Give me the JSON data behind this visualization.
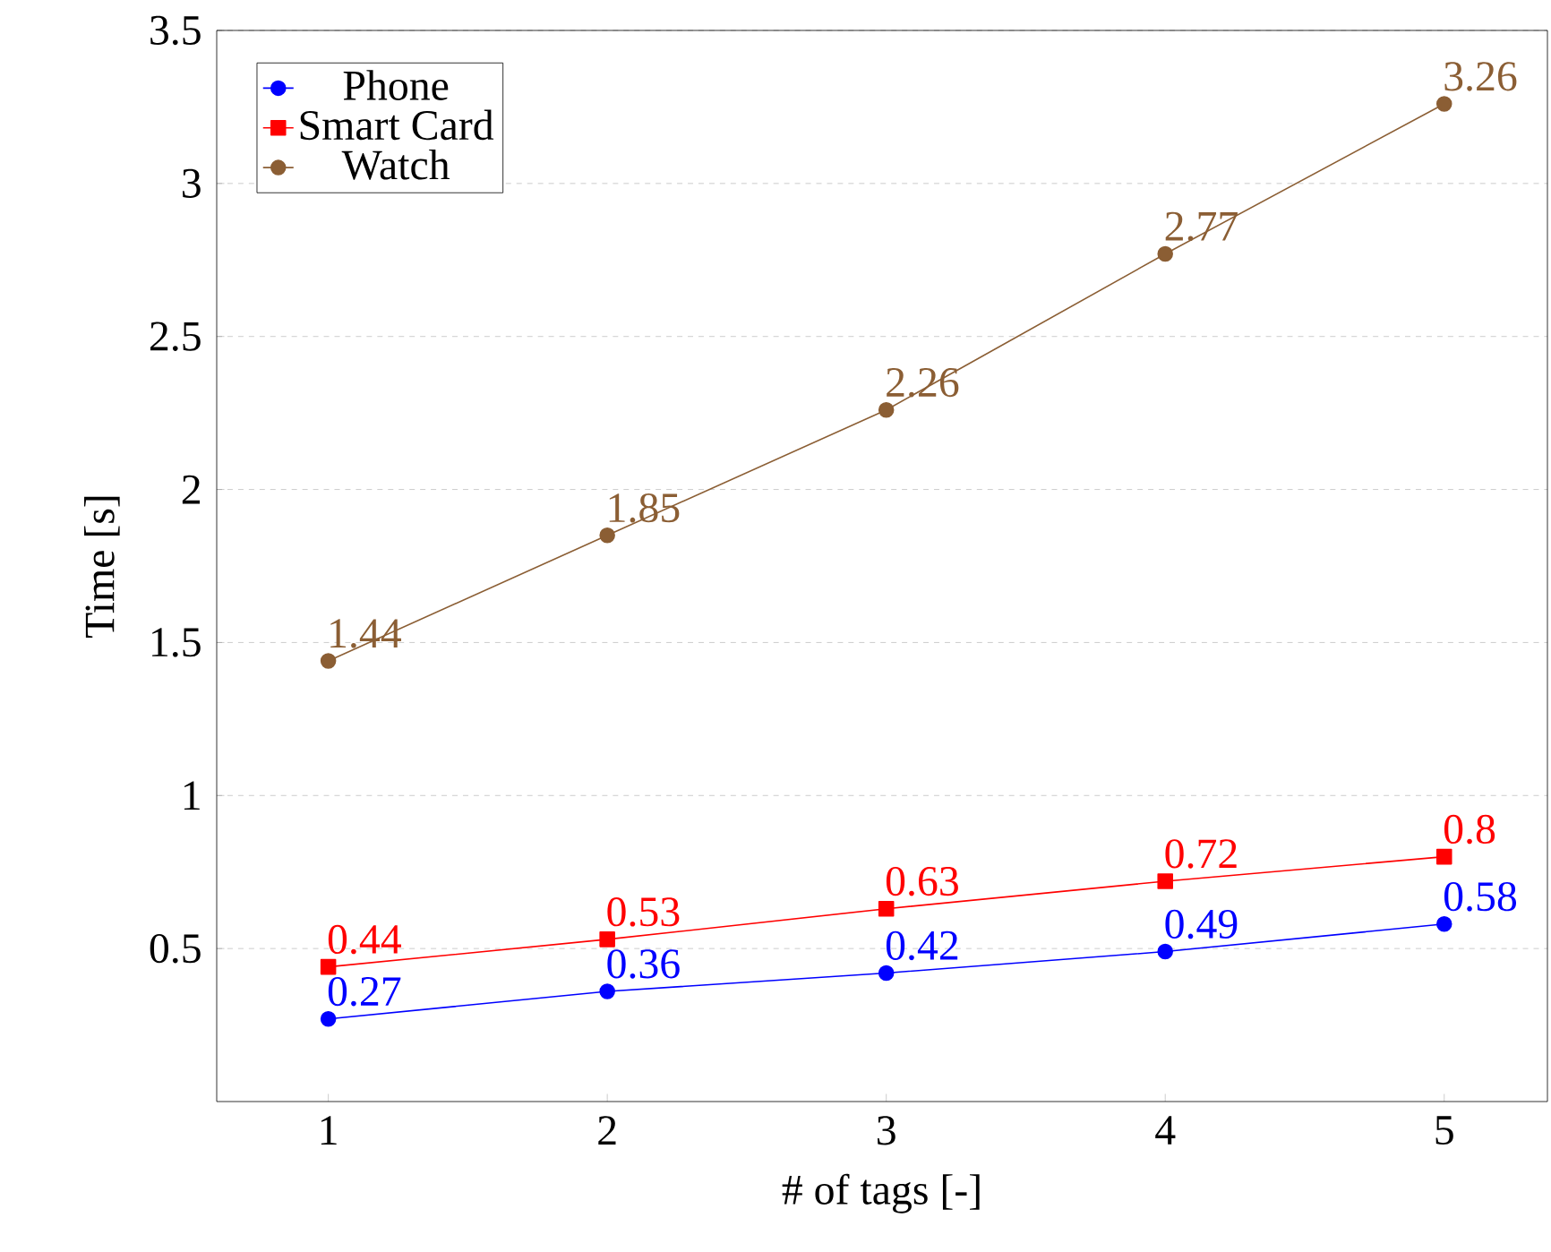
{
  "chart_data": {
    "type": "line",
    "xlabel": "# of tags [-]",
    "ylabel": "Time [s]",
    "x": [
      1,
      2,
      3,
      4,
      5
    ],
    "series": [
      {
        "name": "Phone",
        "color": "#0000ff",
        "marker": "circle",
        "values": [
          0.27,
          0.36,
          0.42,
          0.49,
          0.58
        ]
      },
      {
        "name": "Smart Card",
        "color": "#ff0000",
        "marker": "square",
        "values": [
          0.44,
          0.53,
          0.63,
          0.72,
          0.8
        ]
      },
      {
        "name": "Watch",
        "color": "#8b5e34",
        "marker": "circle",
        "values": [
          1.44,
          1.85,
          2.26,
          2.77,
          3.26
        ]
      }
    ],
    "xlim": [
      0.6,
      5.37
    ],
    "ylim": [
      0,
      3.5
    ],
    "xticks": [
      1,
      2,
      3,
      4,
      5
    ],
    "yticks": [
      0.5,
      1,
      1.5,
      2,
      2.5,
      3,
      3.5
    ],
    "grid": "y",
    "legend": "top left",
    "data_labels": true,
    "line_style": "solid"
  }
}
